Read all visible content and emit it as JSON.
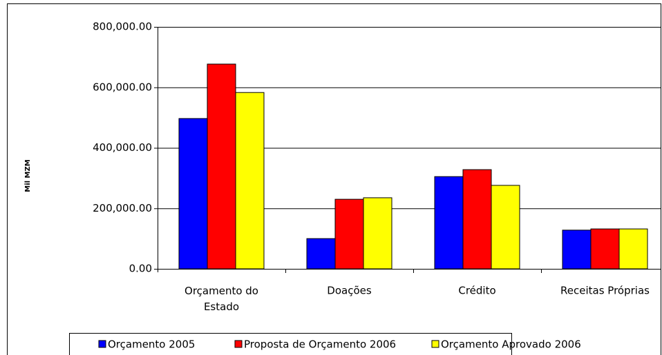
{
  "chart_data": {
    "type": "bar",
    "y_label": "Mil MZM",
    "categories": [
      "Orçamento do Estado",
      "Doações",
      "Crédito",
      "Receitas Próprias"
    ],
    "series": [
      {
        "name": "Orçamento 2005",
        "color": "#0000ff",
        "values": [
          497000,
          100000,
          305000,
          128000
        ]
      },
      {
        "name": "Proposta de Orçamento 2006",
        "color": "#ff0000",
        "values": [
          677000,
          230000,
          328000,
          132000
        ]
      },
      {
        "name": "Orçamento Aprovado 2006",
        "color": "#ffff00",
        "values": [
          583000,
          235000,
          276000,
          132000
        ]
      }
    ],
    "ylim": [
      0,
      800000
    ],
    "yticks": [
      {
        "value": 0,
        "label": "0.00"
      },
      {
        "value": 200000,
        "label": "200,000.00"
      },
      {
        "value": 400000,
        "label": "400,000.00"
      },
      {
        "value": 600000,
        "label": "600,000.00"
      },
      {
        "value": 800000,
        "label": "800,000.00"
      }
    ],
    "grid": true,
    "legend": "bottom"
  }
}
